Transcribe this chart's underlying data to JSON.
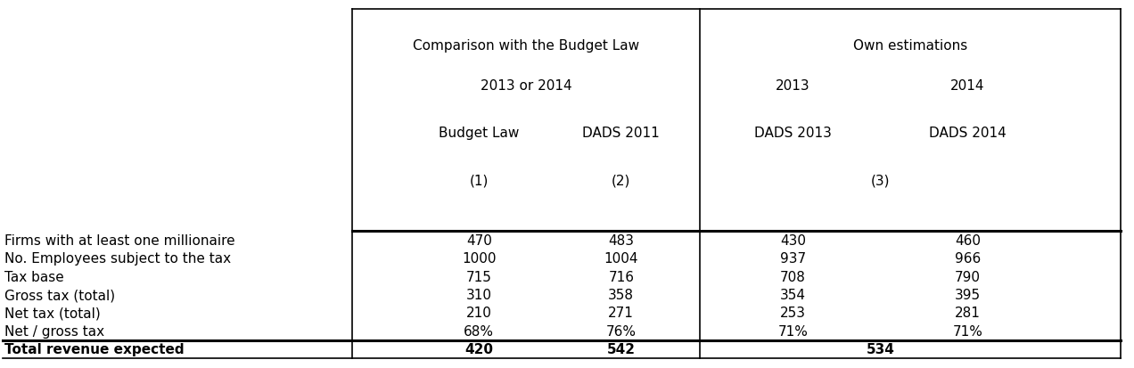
{
  "header_group1_line1": "Comparison with the Budget Law",
  "header_group1_line2": "2013 or 2014",
  "header_group2_line1": "Own estimations",
  "header_col1_line1": "Budget Law",
  "header_col1_line2": "(1)",
  "header_col2_line1": "DADS 2011",
  "header_col2_line2": "(2)",
  "header_col3_line1": "DADS 2013",
  "header_col4_line1": "DADS 2014",
  "header_year3": "2013",
  "header_year4": "2014",
  "header_col34_num": "(3)",
  "row_labels": [
    "Firms with at least one millionaire",
    "No. Employees subject to the tax",
    "Tax base",
    "Gross tax (total)",
    "Net tax (total)",
    "Net / gross tax"
  ],
  "col1_values": [
    "470",
    "1000",
    "715",
    "310",
    "210",
    "68%"
  ],
  "col2_values": [
    "483",
    "1004",
    "716",
    "358",
    "271",
    "76%"
  ],
  "col3_values": [
    "430",
    "937",
    "708",
    "354",
    "253",
    "71%"
  ],
  "col4_values": [
    "460",
    "966",
    "790",
    "395",
    "281",
    "71%"
  ],
  "total_label": "Total revenue expected",
  "total_col1": "420",
  "total_col2": "542",
  "total_col34": "534",
  "bg_color": "#ffffff",
  "text_color": "#000000",
  "line_color": "#000000",
  "font_size": 11
}
